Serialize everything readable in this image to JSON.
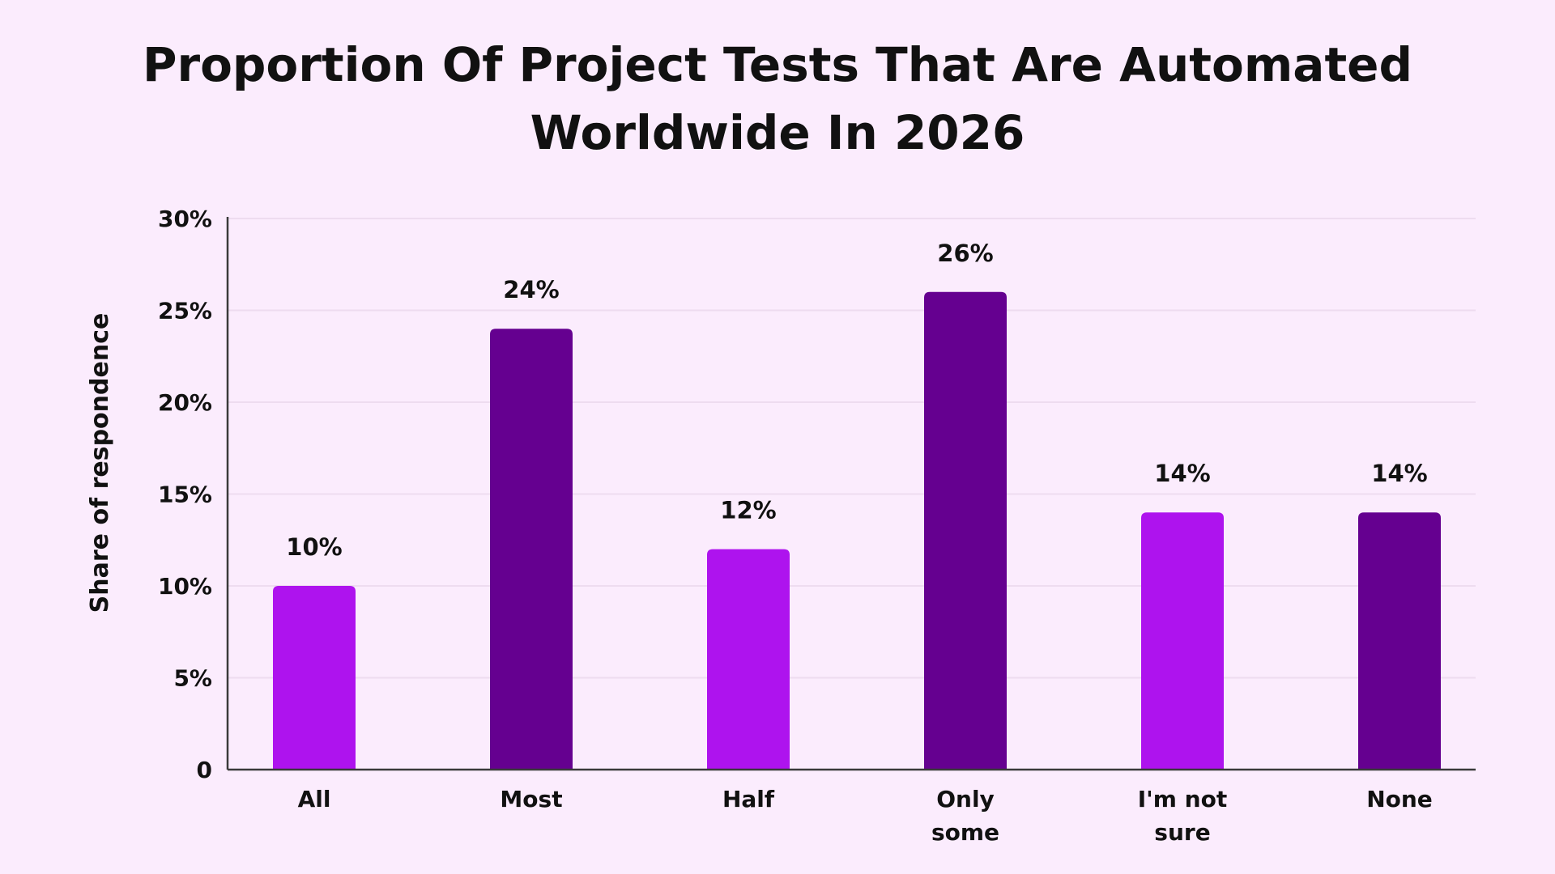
{
  "title": "Proportion Of Project Tests That Are Automated Worldwide In 2026",
  "title_lines": [
    "Proportion Of Project Tests That Are Automated",
    "Worldwide In 2026"
  ],
  "colors": {
    "background": "#fbecfd",
    "bar_light": "#ae13ee",
    "bar_dark": "#650090",
    "gridline": "#eedcf0",
    "axis": "#3a3a3a",
    "text": "#111111"
  },
  "chart_data": {
    "type": "bar",
    "title": "Proportion Of Project Tests That Are Automated Worldwide In 2026",
    "xlabel": "",
    "ylabel": "Share of respondence",
    "categories": [
      "All",
      "Most",
      "Half",
      "Only some",
      "I'm not sure",
      "None"
    ],
    "category_lines": [
      [
        "All"
      ],
      [
        "Most"
      ],
      [
        "Half"
      ],
      [
        "Only",
        "some"
      ],
      [
        "I'm not",
        "sure"
      ],
      [
        "None"
      ]
    ],
    "values": [
      10,
      24,
      12,
      26,
      14,
      14
    ],
    "data_labels": [
      "10%",
      "24%",
      "12%",
      "26%",
      "14%",
      "14%"
    ],
    "bar_colors": [
      "#ae13ee",
      "#650090",
      "#ae13ee",
      "#650090",
      "#ae13ee",
      "#650090"
    ],
    "ylim": [
      0,
      30
    ],
    "yticks": [
      0,
      5,
      10,
      15,
      20,
      25,
      30
    ],
    "ytick_labels": [
      "0",
      "5%",
      "10%",
      "15%",
      "20%",
      "25%",
      "30%"
    ],
    "grid": true,
    "legend": "none"
  }
}
